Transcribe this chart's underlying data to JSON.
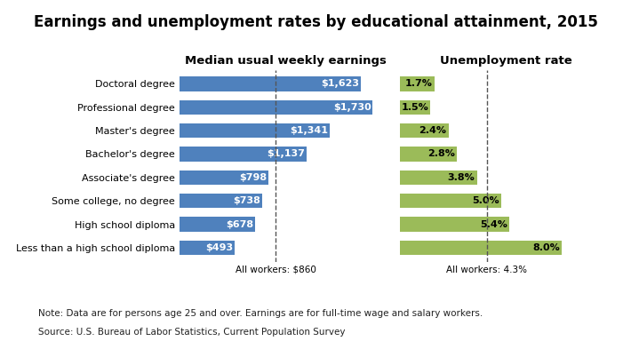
{
  "title": "Earnings and unemployment rates by educational attainment, 2015",
  "categories": [
    "Doctoral degree",
    "Professional degree",
    "Master's degree",
    "Bachelor's degree",
    "Associate's degree",
    "Some college, no degree",
    "High school diploma",
    "Less than a high school diploma"
  ],
  "earnings": [
    1623,
    1730,
    1341,
    1137,
    798,
    738,
    678,
    493
  ],
  "earnings_labels": [
    "$1,623",
    "$1,730",
    "$1,341",
    "$1,137",
    "$798",
    "$738",
    "$678",
    "$493"
  ],
  "unemployment": [
    1.7,
    1.5,
    2.4,
    2.8,
    3.8,
    5.0,
    5.4,
    8.0
  ],
  "unemployment_labels": [
    "1.7%",
    "1.5%",
    "2.4%",
    "2.8%",
    "3.8%",
    "5.0%",
    "5.4%",
    "8.0%"
  ],
  "earnings_color": "#4F81BD",
  "unemployment_color": "#9BBB59",
  "all_workers_earnings": 860,
  "all_workers_earnings_label": "All workers: $860",
  "all_workers_unemployment": 4.3,
  "all_workers_unemployment_label": "All workers: 4.3%",
  "earnings_header": "Median usual weekly earnings",
  "unemployment_header": "Unemployment rate",
  "note_line1": "Note: Data are for persons age 25 and over. Earnings are for full-time wage and salary workers.",
  "note_line2": "Source: U.S. Bureau of Labor Statistics, Current Population Survey",
  "earnings_max": 1900,
  "unemployment_max": 10.5,
  "background_color": "#FFFFFF",
  "title_fontsize": 12,
  "label_fontsize": 8,
  "header_fontsize": 9.5,
  "note_fontsize": 7.5
}
